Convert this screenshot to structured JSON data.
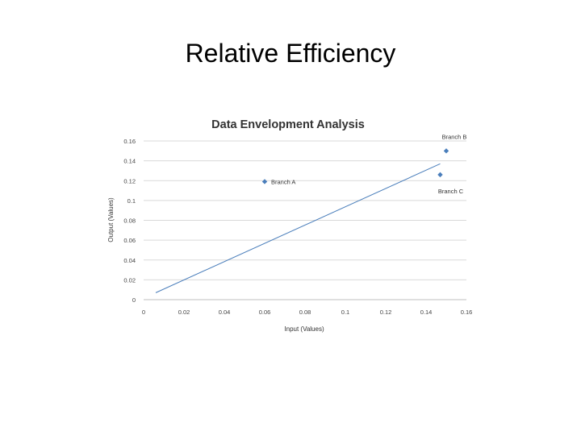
{
  "slide": {
    "title": "Relative Efficiency"
  },
  "chart_data": {
    "type": "scatter",
    "title": "Data Envelopment Analysis",
    "xlabel": "Input (Values)",
    "ylabel": "Output (Values)",
    "xlim": [
      0,
      0.16
    ],
    "ylim": [
      0,
      0.16
    ],
    "xticks": [
      "0",
      "0.02",
      "0.04",
      "0.06",
      "0.08",
      "0.1",
      "0.12",
      "0.14",
      "0.16"
    ],
    "yticks": [
      "0",
      "0.02",
      "0.04",
      "0.06",
      "0.08",
      "0.1",
      "0.12",
      "0.14",
      "0.16"
    ],
    "grid": "horizontal",
    "points": [
      {
        "label": "Branch A",
        "x": 0.06,
        "y": 0.119,
        "label_position": "right"
      },
      {
        "label": "Branch B",
        "x": 0.15,
        "y": 0.15,
        "label_position": "above"
      },
      {
        "label": "Branch C",
        "x": 0.147,
        "y": 0.126,
        "label_position": "below"
      }
    ],
    "trendline": {
      "x": [
        0.006,
        0.147
      ],
      "y": [
        0.007,
        0.137
      ]
    },
    "colors": {
      "marker": "#4a7ebb",
      "trendline": "#4a7ebb",
      "grid": "#d9d9d9"
    }
  }
}
